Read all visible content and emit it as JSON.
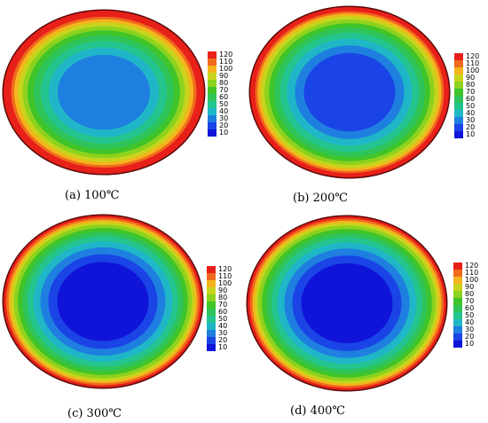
{
  "legend": {
    "levels": [
      "120",
      "110",
      "100",
      "90",
      "80",
      "70",
      "60",
      "50",
      "40",
      "30",
      "20",
      "10"
    ],
    "colors": [
      "#e8201a",
      "#f06a1e",
      "#f5b41d",
      "#c8d41c",
      "#8cd21e",
      "#3fc42a",
      "#2fc45a",
      "#24c48f",
      "#1fb7c7",
      "#1f7fe0",
      "#1a44e6",
      "#0f14d8"
    ]
  },
  "panels": [
    {
      "caption": "(a) 100℃",
      "band_levels": [
        12,
        12,
        12,
        11,
        10,
        9,
        8,
        7,
        6,
        5,
        4,
        3
      ]
    },
    {
      "caption": "(b) 200℃",
      "band_levels": [
        12,
        12,
        11,
        10,
        9,
        8,
        7,
        6,
        5,
        4,
        3,
        2
      ]
    },
    {
      "caption": "(c) 300℃",
      "band_levels": [
        12,
        11,
        10,
        9,
        8,
        7,
        6,
        5,
        4,
        3,
        2,
        1
      ]
    },
    {
      "caption": "(d) 400℃",
      "band_levels": [
        12,
        11,
        10,
        9,
        8,
        7,
        6,
        5,
        4,
        3,
        2,
        1
      ]
    }
  ]
}
